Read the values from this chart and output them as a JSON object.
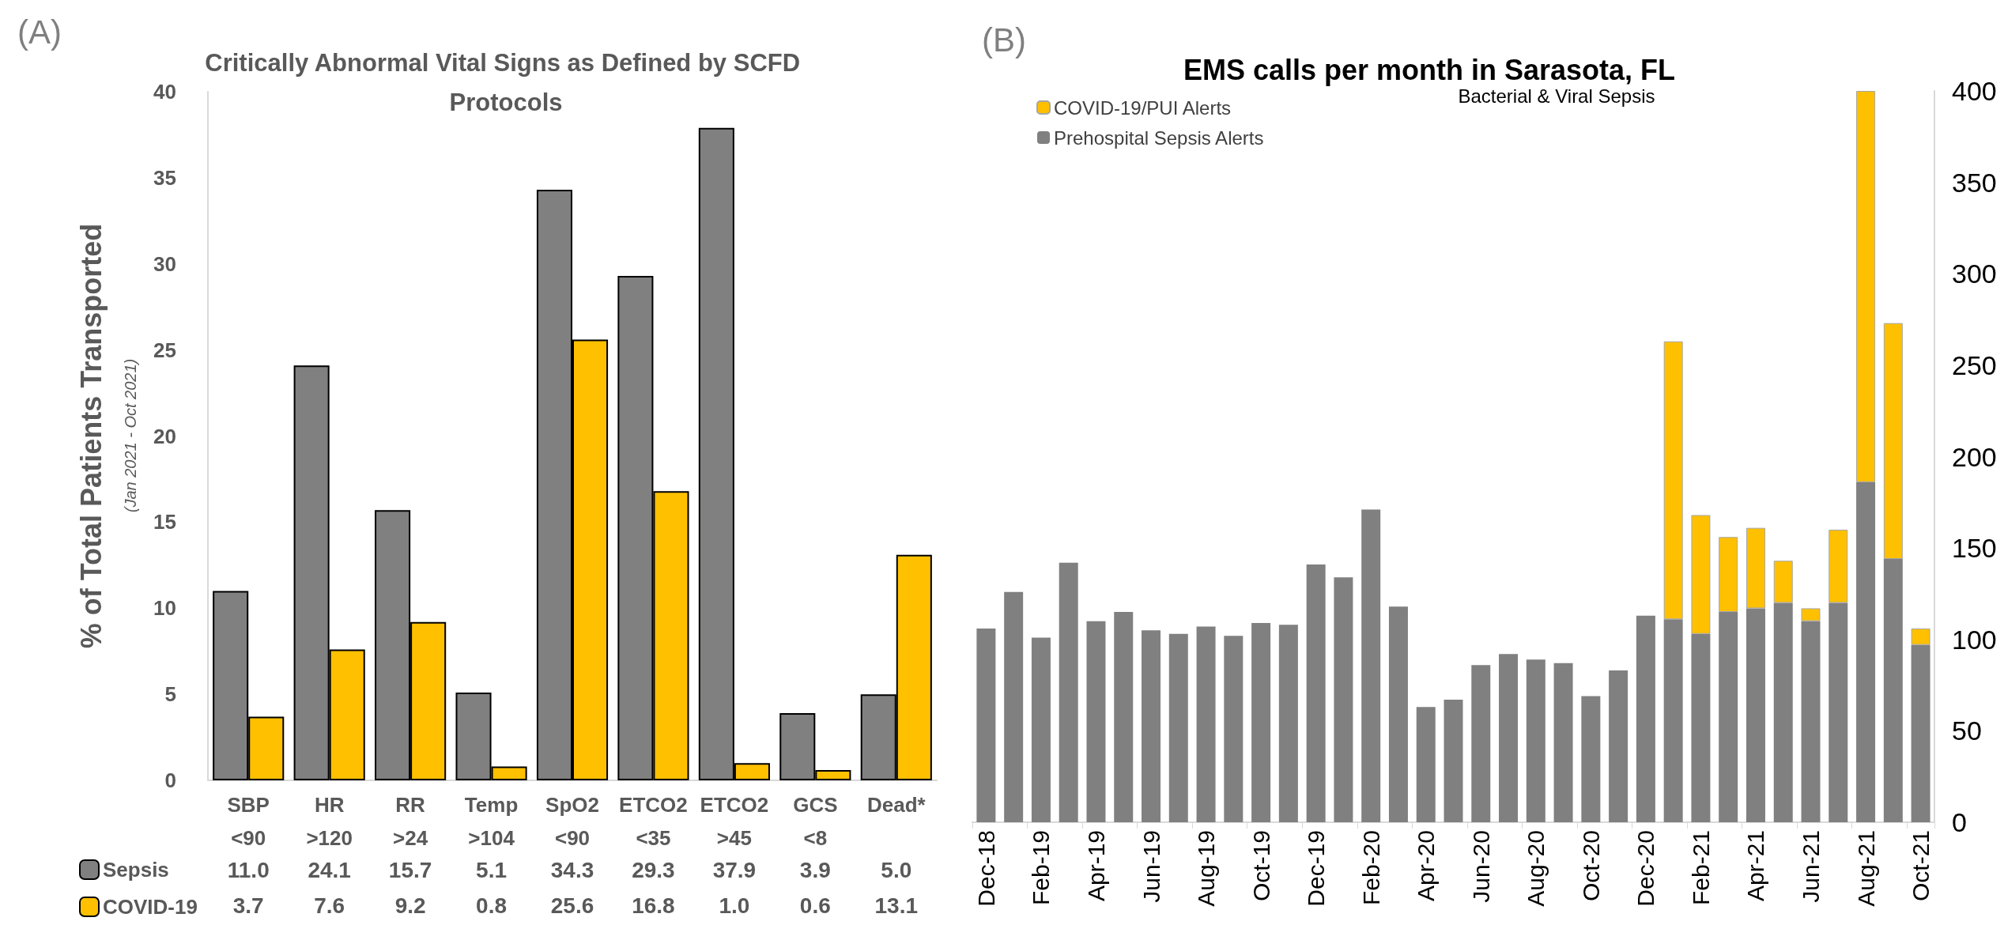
{
  "chart_data": [
    {
      "type": "bar",
      "title": "Critically Abnormal Vital Signs as Defined by SCFD Protocols",
      "ylabel": "% of Total Patients Transported",
      "annotations": [
        "(A)",
        "(Jan 2021 - Oct 2021)"
      ],
      "categories": [
        "SBP\n<90",
        "HR\n>120",
        "RR\n>24",
        "Temp\n>104",
        "SpO2\n<90",
        "ETCO2\n<35",
        "ETCO2\n>45",
        "GCS\n<8",
        "Dead*"
      ],
      "series": [
        {
          "name": "Sepsis",
          "color": "#808080",
          "values": [
            11.0,
            24.1,
            15.7,
            5.1,
            34.3,
            29.3,
            37.9,
            3.9,
            5.0
          ],
          "value_labels": [
            "11.0",
            "24.1",
            "15.7",
            "5.1",
            "34.3",
            "29.3",
            "37.9",
            "3.9",
            "5.0"
          ]
        },
        {
          "name": "COVID-19",
          "color": "#ffc000",
          "values": [
            3.7,
            7.6,
            9.2,
            0.8,
            25.6,
            16.8,
            1.0,
            0.6,
            13.1
          ],
          "value_labels": [
            "3.7",
            "7.6",
            "9.2",
            "0.8",
            "25.6",
            "16.8",
            "1.0",
            "0.6",
            "13.1"
          ]
        }
      ],
      "ylim": [
        0,
        40
      ],
      "yticks": [
        0,
        5,
        10,
        15,
        20,
        25,
        30,
        35,
        40
      ],
      "grid": false,
      "legend": "bottom left"
    },
    {
      "type": "bar",
      "title": "EMS calls per month in Sarasota, FL",
      "subtitle": "Bacterial & Viral Sepsis",
      "annotations": [
        "(B)"
      ],
      "categories": [
        "Dec-18",
        null,
        "Feb-19",
        null,
        "Apr-19",
        null,
        "Jun-19",
        null,
        "Aug-19",
        null,
        "Oct-19",
        null,
        "Dec-19",
        null,
        "Feb-20",
        null,
        "Apr-20",
        null,
        "Jun-20",
        null,
        "Aug-20",
        null,
        "Oct-20",
        null,
        "Dec-20",
        null,
        "Feb-21",
        null,
        "Apr-21",
        null,
        "Jun-21",
        null,
        "Aug-21",
        null,
        "Oct-21"
      ],
      "series": [
        {
          "name": "Prehospital Sepsis Alerts",
          "color": "#808080",
          "values": [
            106,
            126,
            101,
            142,
            110,
            115,
            105,
            103,
            107,
            102,
            109,
            108,
            141,
            134,
            171,
            118,
            63,
            67,
            86,
            92,
            89,
            87,
            69,
            83,
            113,
            111,
            103,
            115,
            117,
            120,
            110,
            120,
            186,
            144,
            97
          ]
        },
        {
          "name": "COVID-19/PUI Alerts",
          "color": "#ffc000",
          "values": [
            null,
            null,
            null,
            null,
            null,
            null,
            null,
            null,
            null,
            null,
            null,
            null,
            null,
            null,
            null,
            null,
            null,
            null,
            null,
            null,
            null,
            null,
            null,
            null,
            null,
            152,
            65,
            41,
            44,
            23,
            7,
            40,
            214,
            129,
            9
          ]
        }
      ],
      "stacked": true,
      "ylim": [
        0,
        400
      ],
      "yticks": [
        0,
        50,
        100,
        150,
        200,
        250,
        300,
        350,
        400
      ],
      "grid": false,
      "legend": "top left"
    }
  ]
}
